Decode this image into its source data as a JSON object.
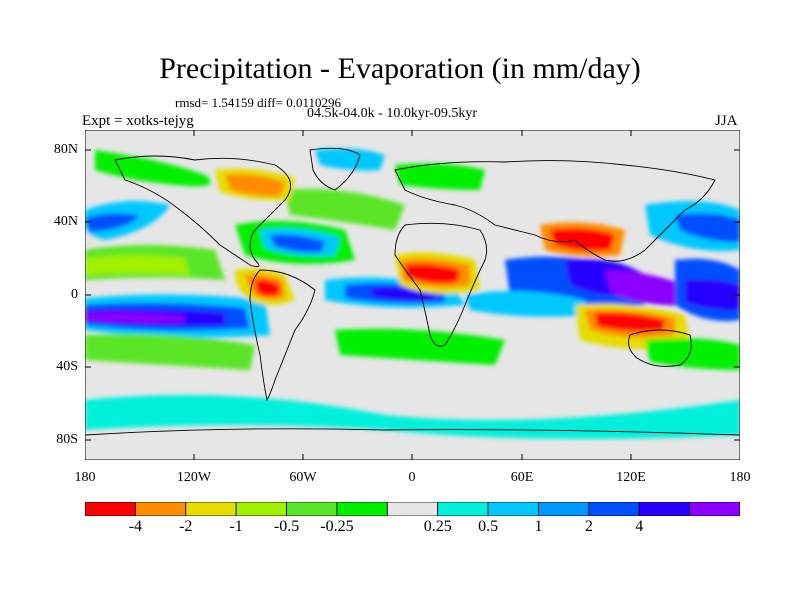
{
  "header": {
    "title": "Precipitation - Evaporation (in mm/day)",
    "stats": "rmsd= 1.54159 diff= 0.0110296",
    "period": "04.5k-04.0k - 10.0kyr-09.5kyr",
    "experiment": "Expt = xotks-tejyg",
    "season": "JJA"
  },
  "map": {
    "lat_labels": [
      "80N",
      "40N",
      "0",
      "40S",
      "80S"
    ],
    "lon_labels": [
      "180",
      "120W",
      "60W",
      "0",
      "60E",
      "120E",
      "180"
    ],
    "background_color": "#e6e6e6",
    "coastline_color": "#000000"
  },
  "colorbar": {
    "colors": [
      "#ff0000",
      "#ff8c00",
      "#e6dc00",
      "#a0f000",
      "#5ae628",
      "#00f000",
      "#e6e6e6",
      "#00f0dc",
      "#00c8ff",
      "#0096ff",
      "#0050ff",
      "#2800ff",
      "#8c00ff"
    ],
    "labels": [
      "-4",
      "-2",
      "-1",
      "-0.5",
      "-0.25",
      "0.25",
      "0.5",
      "1",
      "2",
      "4"
    ]
  }
}
